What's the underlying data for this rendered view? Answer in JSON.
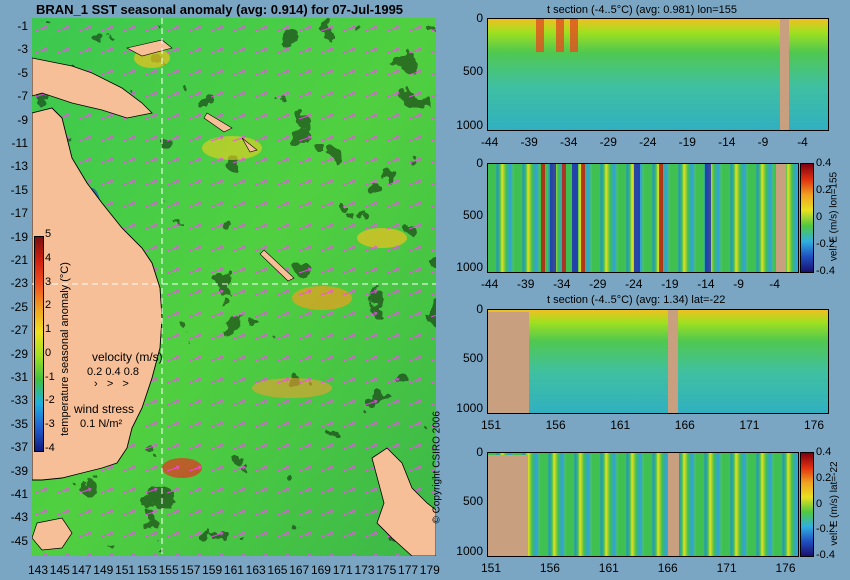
{
  "map": {
    "title": "BRAN_1  SST seasonal anomaly (avg: 0.914) for 07-Jul-1995",
    "lat_ticks": [
      "-1",
      "-3",
      "-5",
      "-7",
      "-9",
      "-11",
      "-13",
      "-15",
      "-17",
      "-19",
      "-21",
      "-23",
      "-25",
      "-27",
      "-29",
      "-31",
      "-33",
      "-35",
      "-37",
      "-39",
      "-41",
      "-43",
      "-45"
    ],
    "lon_ticks": [
      "143",
      "145",
      "147",
      "149",
      "151",
      "153",
      "155",
      "157",
      "159",
      "161",
      "163",
      "165",
      "167",
      "169",
      "171",
      "173",
      "175",
      "177",
      "179"
    ],
    "colorbar": {
      "label": "temperature seasonal anomaly (°C)",
      "ticks": [
        "5",
        "4",
        "3",
        "2",
        "1",
        "0",
        "-1",
        "-2",
        "-3",
        "-4"
      ]
    },
    "velocity_legend": {
      "label": "velocity (m/s)",
      "values": "0.2 0.4 0.8"
    },
    "wind_legend": {
      "label": "wind stress",
      "value": "0.1 N/m²"
    },
    "copyright": "© Copyright CSIRO 2006",
    "crosshair": {
      "lon": 155,
      "lat": -22
    }
  },
  "panels": [
    {
      "title": "t section (-4..5°C) (avg: 0.981) lon=155",
      "y_ticks": [
        "0",
        "500",
        "1000"
      ],
      "x_ticks": [
        "-44",
        "-39",
        "-34",
        "-29",
        "-24",
        "-19",
        "-14",
        "-9",
        "-4"
      ]
    },
    {
      "title": "",
      "y_ticks": [
        "0",
        "500",
        "1000"
      ],
      "x_ticks": [
        "-44",
        "-39",
        "-34",
        "-29",
        "-24",
        "-19",
        "-14",
        "-9",
        "-4"
      ],
      "colorbar_label": "vel. E (m/s) lon=155",
      "colorbar_ticks": [
        "0.4",
        "0.2",
        "0",
        "-0.2",
        "-0.4"
      ]
    },
    {
      "title": "t section (-4..5°C) (avg: 1.34) lat=-22",
      "y_ticks": [
        "0",
        "500",
        "1000"
      ],
      "x_ticks": [
        "151",
        "156",
        "161",
        "166",
        "171",
        "176"
      ]
    },
    {
      "title": "",
      "y_ticks": [
        "0",
        "500",
        "1000"
      ],
      "x_ticks": [
        "151",
        "156",
        "161",
        "166",
        "171",
        "176"
      ],
      "colorbar_label": "vel. E (m/s) lat=-22",
      "colorbar_ticks": [
        "0.4",
        "0.2",
        "0",
        "-0.2",
        "-0.4"
      ]
    }
  ],
  "colors": {
    "background": "#7aa6c4",
    "land": "#f7bf97",
    "section_land": "#c8a080",
    "anomaly_green": "#3cc850",
    "wind_arrow": "#ff40ff"
  }
}
